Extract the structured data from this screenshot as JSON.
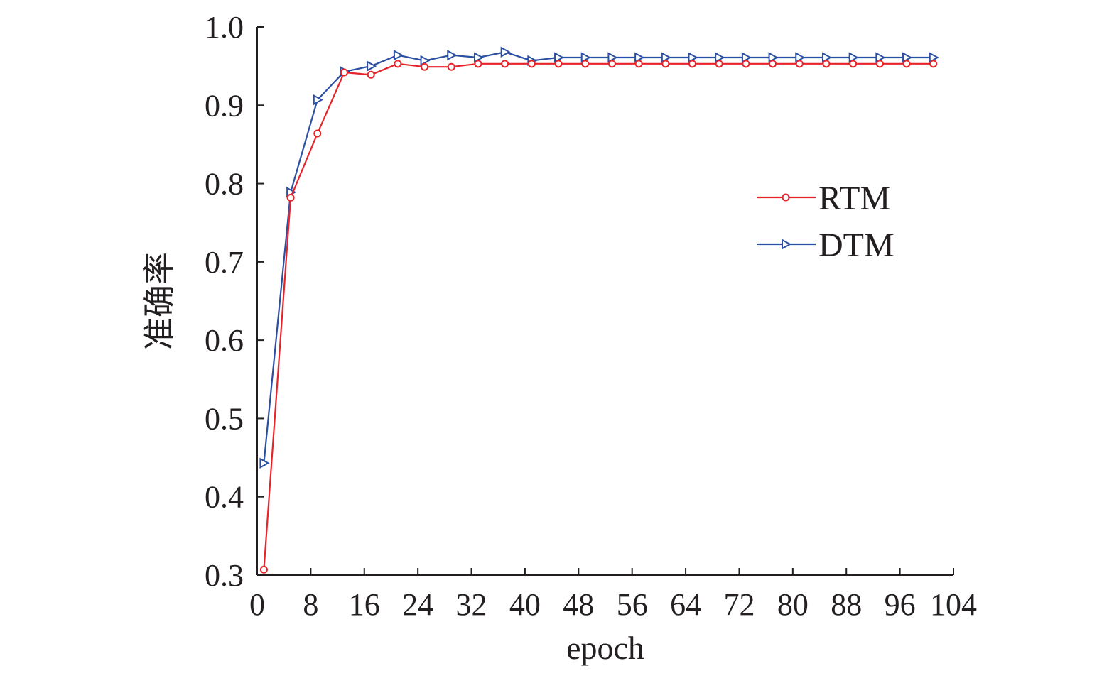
{
  "colors": {
    "axis": "#231f20",
    "background": "#ffffff"
  },
  "chart_data": {
    "type": "line",
    "title": "",
    "xlabel": "epoch",
    "ylabel": "准确率",
    "xlim": [
      0,
      104
    ],
    "ylim": [
      0.3,
      1.0
    ],
    "x_ticks": [
      0,
      8,
      16,
      24,
      32,
      40,
      48,
      56,
      64,
      72,
      80,
      88,
      96,
      104
    ],
    "x_tick_labels": [
      "0",
      "8",
      "16",
      "24",
      "32",
      "40",
      "48",
      "56",
      "64",
      "72",
      "80",
      "88",
      "96",
      "104"
    ],
    "y_ticks": [
      0.3,
      0.4,
      0.5,
      0.6,
      0.7,
      0.8,
      0.9,
      1.0
    ],
    "y_tick_labels": [
      "0.3",
      "0.4",
      "0.5",
      "0.6",
      "0.7",
      "0.8",
      "0.9",
      "1.0"
    ],
    "grid": false,
    "legend_position": "right",
    "x": [
      1,
      5,
      9,
      13,
      17,
      21,
      25,
      29,
      33,
      37,
      41,
      45,
      49,
      53,
      57,
      61,
      65,
      69,
      73,
      77,
      81,
      85,
      89,
      93,
      97,
      101
    ],
    "series": [
      {
        "name": "RTM",
        "color": "#e8242b",
        "marker": "circle",
        "values": [
          0.307,
          0.782,
          0.864,
          0.942,
          0.939,
          0.953,
          0.949,
          0.949,
          0.953,
          0.953,
          0.953,
          0.953,
          0.953,
          0.953,
          0.953,
          0.953,
          0.953,
          0.953,
          0.953,
          0.953,
          0.953,
          0.953,
          0.953,
          0.953,
          0.953,
          0.953
        ]
      },
      {
        "name": "DTM",
        "color": "#2b4fa2",
        "marker": "triangle-right",
        "values": [
          0.443,
          0.789,
          0.907,
          0.943,
          0.95,
          0.964,
          0.957,
          0.964,
          0.961,
          0.968,
          0.957,
          0.961,
          0.961,
          0.961,
          0.961,
          0.961,
          0.961,
          0.961,
          0.961,
          0.961,
          0.961,
          0.961,
          0.961,
          0.961,
          0.961,
          0.961
        ]
      }
    ]
  }
}
